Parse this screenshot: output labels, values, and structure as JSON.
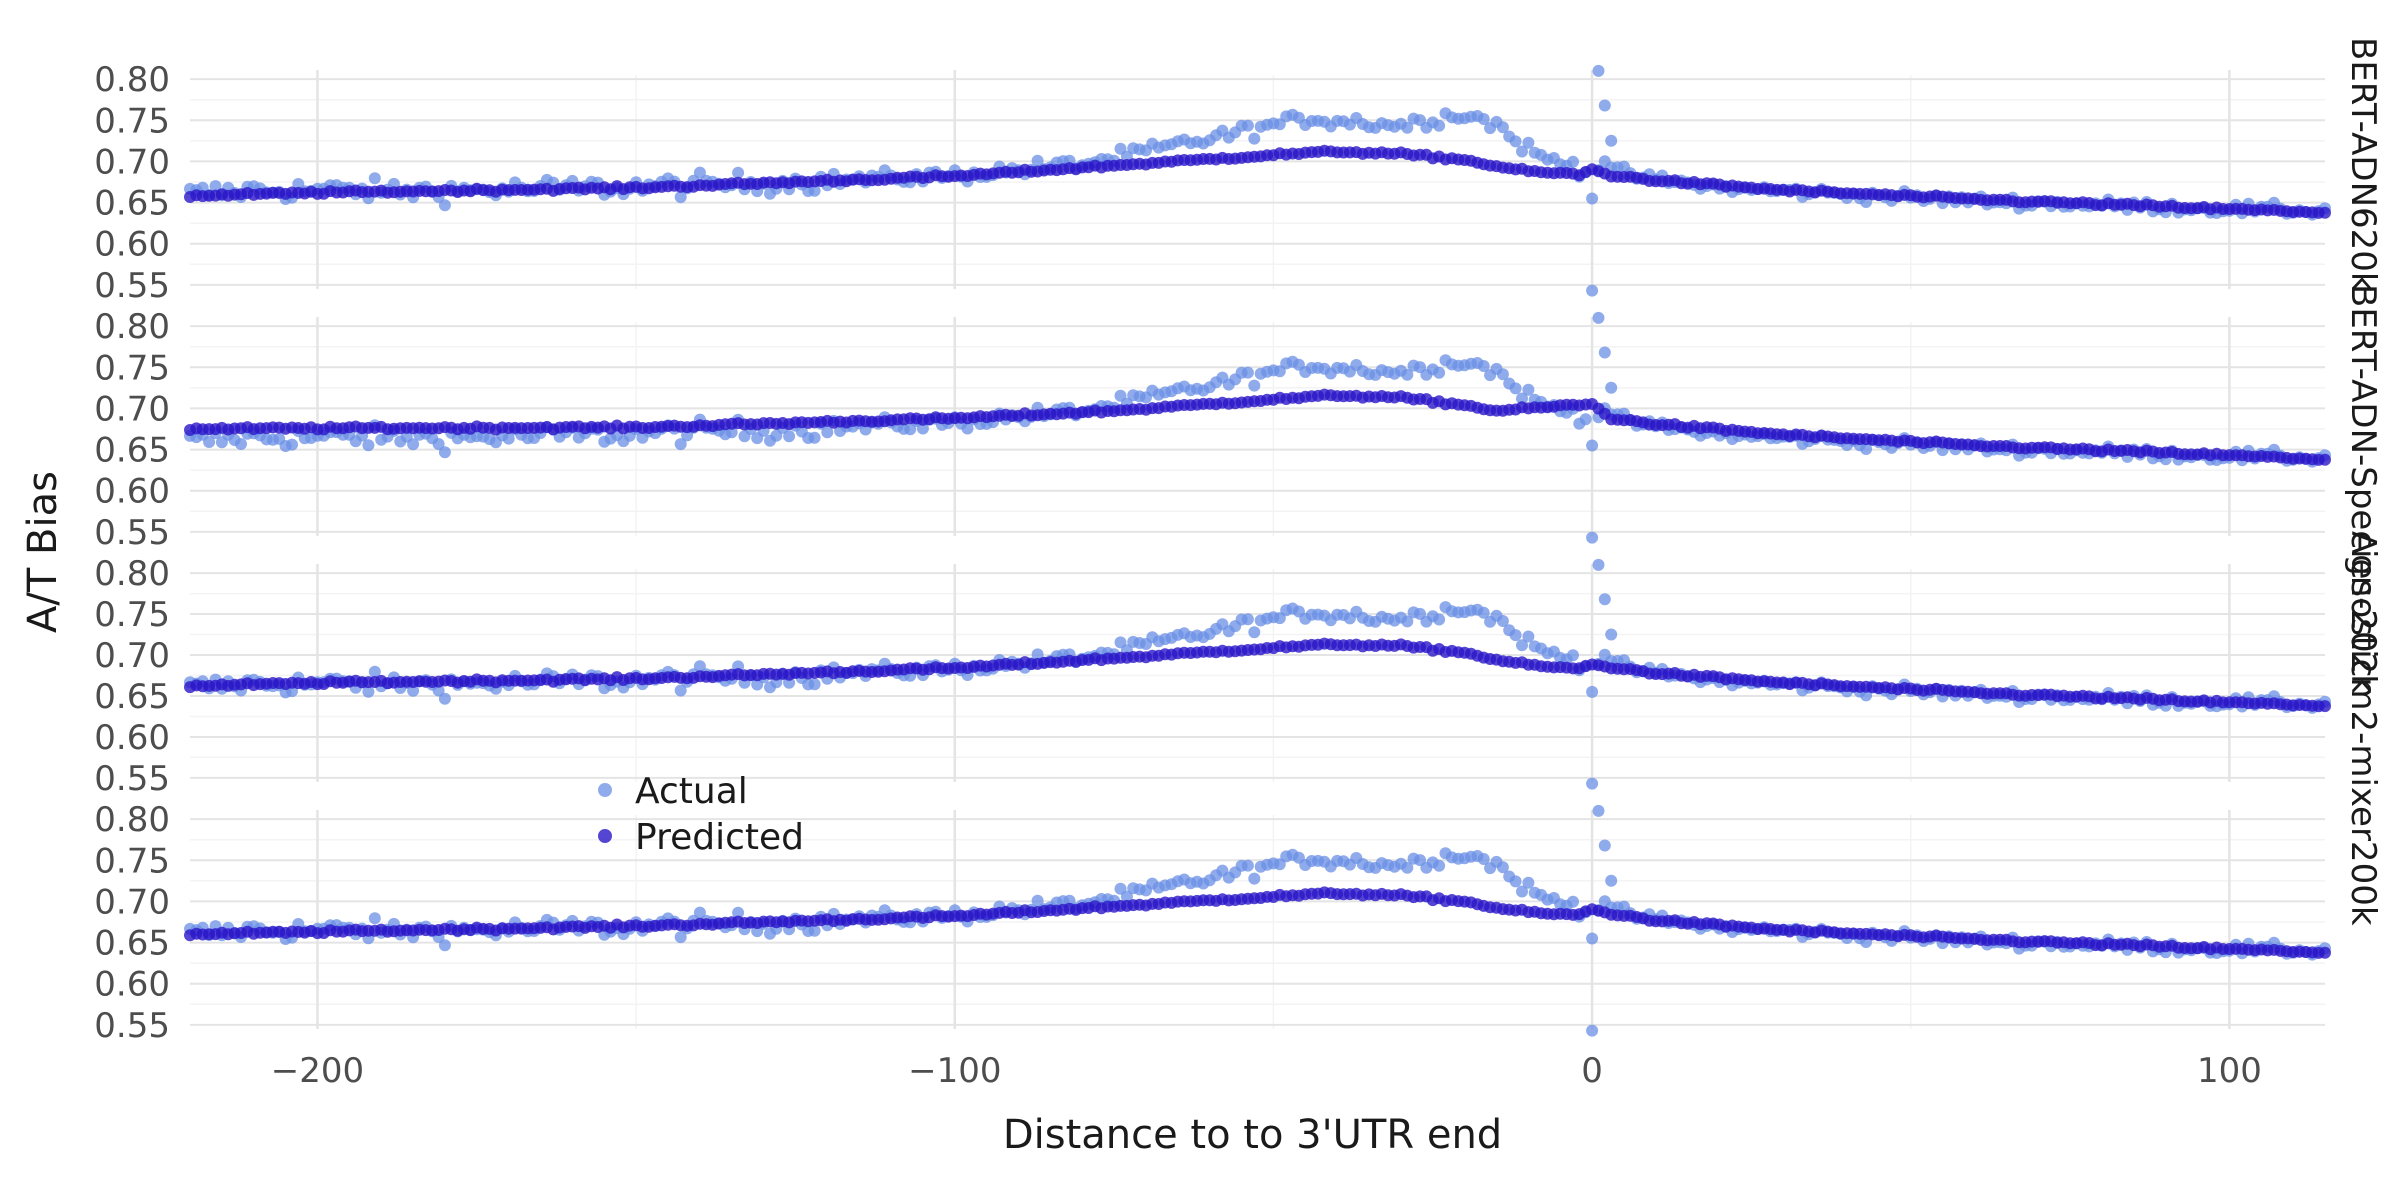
{
  "chart_data": {
    "type": "scatter",
    "xlabel": "Distance to to 3'UTR end",
    "ylabel": "A/T Bias",
    "xlim": [
      -220,
      115
    ],
    "ylim": [
      0.545,
      0.805
    ],
    "x_ticks": [
      -200,
      -100,
      0,
      100
    ],
    "x_tick_labels": [
      "−200",
      "−100",
      "0",
      "100"
    ],
    "y_ticks": [
      0.55,
      0.6,
      0.65,
      0.7,
      0.75,
      0.8
    ],
    "y_tick_labels": [
      "0.55",
      "0.60",
      "0.65",
      "0.70",
      "0.75",
      "0.80"
    ],
    "grid": true,
    "legend": {
      "position": "bottom-left of lower panels",
      "entries": [
        "Actual",
        "Predicted"
      ]
    },
    "colors": {
      "Actual": "#6a8fe6",
      "Predicted": "#2a17c8",
      "grid": "#e4e4e4"
    },
    "actual_profile": [
      [
        -220,
        0.66
      ],
      [
        -210,
        0.665
      ],
      [
        -200,
        0.665
      ],
      [
        -180,
        0.664
      ],
      [
        -150,
        0.669
      ],
      [
        -125,
        0.675
      ],
      [
        -100,
        0.683
      ],
      [
        -90,
        0.69
      ],
      [
        -80,
        0.697
      ],
      [
        -70,
        0.712
      ],
      [
        -60,
        0.728
      ],
      [
        -50,
        0.744
      ],
      [
        -45,
        0.752
      ],
      [
        -40,
        0.75
      ],
      [
        -30,
        0.744
      ],
      [
        -25,
        0.752
      ],
      [
        -20,
        0.758
      ],
      [
        -15,
        0.745
      ],
      [
        -12,
        0.725
      ],
      [
        -8,
        0.705
      ],
      [
        -3,
        0.695
      ],
      [
        0,
        0.69
      ],
      [
        2,
        0.7
      ],
      [
        5,
        0.685
      ],
      [
        10,
        0.678
      ],
      [
        20,
        0.668
      ],
      [
        40,
        0.66
      ],
      [
        60,
        0.652
      ],
      [
        80,
        0.647
      ],
      [
        100,
        0.642
      ],
      [
        115,
        0.64
      ]
    ],
    "actual_spikes": [
      [
        0,
        0.655
      ],
      [
        0,
        0.543
      ],
      [
        1,
        0.81
      ],
      [
        2,
        0.768
      ],
      [
        3,
        0.725
      ]
    ],
    "panels": [
      {
        "label": "BERT-ADN620k",
        "predicted_profile": [
          [
            -220,
            0.658
          ],
          [
            -200,
            0.662
          ],
          [
            -150,
            0.668
          ],
          [
            -100,
            0.682
          ],
          [
            -75,
            0.695
          ],
          [
            -50,
            0.708
          ],
          [
            -40,
            0.712
          ],
          [
            -30,
            0.709
          ],
          [
            -20,
            0.702
          ],
          [
            -15,
            0.694
          ],
          [
            -10,
            0.688
          ],
          [
            -2,
            0.684
          ],
          [
            0,
            0.69
          ],
          [
            3,
            0.683
          ],
          [
            10,
            0.677
          ],
          [
            30,
            0.665
          ],
          [
            60,
            0.654
          ],
          [
            100,
            0.642
          ],
          [
            115,
            0.638
          ]
        ]
      },
      {
        "label": "BERT-ADN-Species-202k",
        "predicted_profile": [
          [
            -220,
            0.675
          ],
          [
            -200,
            0.676
          ],
          [
            -150,
            0.677
          ],
          [
            -100,
            0.688
          ],
          [
            -75,
            0.697
          ],
          [
            -50,
            0.711
          ],
          [
            -40,
            0.716
          ],
          [
            -30,
            0.713
          ],
          [
            -20,
            0.704
          ],
          [
            -15,
            0.697
          ],
          [
            -5,
            0.703
          ],
          [
            0,
            0.705
          ],
          [
            3,
            0.688
          ],
          [
            10,
            0.681
          ],
          [
            30,
            0.668
          ],
          [
            60,
            0.655
          ],
          [
            100,
            0.643
          ],
          [
            115,
            0.638
          ]
        ]
      },
      {
        "label": "Agnosticm2-mixer200k",
        "predicted_profile": [
          [
            -220,
            0.662
          ],
          [
            -200,
            0.666
          ],
          [
            -150,
            0.671
          ],
          [
            -100,
            0.684
          ],
          [
            -75,
            0.696
          ],
          [
            -50,
            0.709
          ],
          [
            -40,
            0.713
          ],
          [
            -30,
            0.711
          ],
          [
            -20,
            0.703
          ],
          [
            -15,
            0.694
          ],
          [
            -10,
            0.688
          ],
          [
            -3,
            0.683
          ],
          [
            0,
            0.688
          ],
          [
            3,
            0.685
          ],
          [
            10,
            0.678
          ],
          [
            30,
            0.666
          ],
          [
            60,
            0.654
          ],
          [
            100,
            0.642
          ],
          [
            115,
            0.638
          ]
        ]
      },
      {
        "label": "",
        "predicted_profile": [
          [
            -220,
            0.66
          ],
          [
            -200,
            0.663
          ],
          [
            -150,
            0.67
          ],
          [
            -100,
            0.682
          ],
          [
            -75,
            0.694
          ],
          [
            -50,
            0.706
          ],
          [
            -40,
            0.71
          ],
          [
            -30,
            0.707
          ],
          [
            -20,
            0.7
          ],
          [
            -15,
            0.692
          ],
          [
            -10,
            0.687
          ],
          [
            -3,
            0.683
          ],
          [
            0,
            0.69
          ],
          [
            3,
            0.685
          ],
          [
            10,
            0.677
          ],
          [
            30,
            0.665
          ],
          [
            60,
            0.654
          ],
          [
            100,
            0.642
          ],
          [
            115,
            0.638
          ]
        ]
      }
    ]
  }
}
